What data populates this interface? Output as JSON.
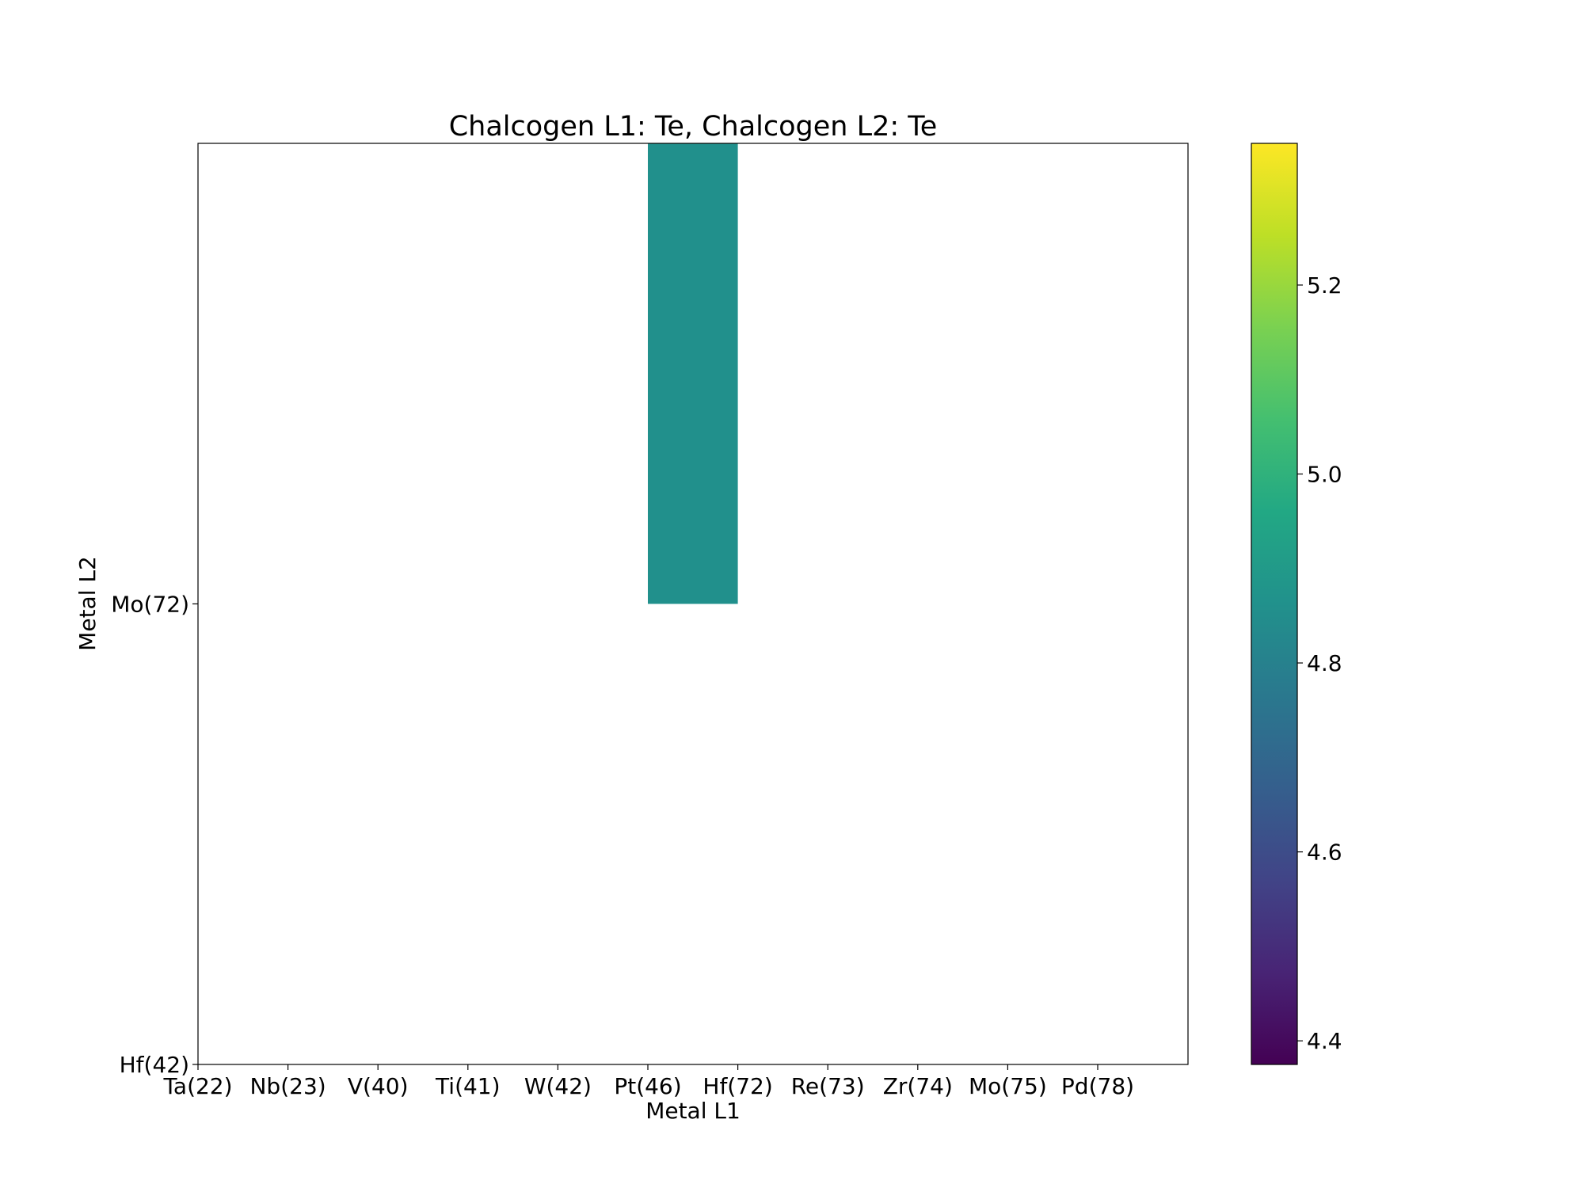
{
  "chart_data": {
    "type": "heatmap",
    "title": "Chalcogen L1: Te, Chalcogen L2: Te",
    "xlabel": "Metal L1",
    "ylabel": "Metal L2",
    "x_categories": [
      "Ta(22)",
      "Nb(23)",
      "V(40)",
      "Ti(41)",
      "W(42)",
      "Pt(46)",
      "Hf(72)",
      "Re(73)",
      "Zr(74)",
      "Mo(75)",
      "Pd(78)"
    ],
    "y_categories": [
      "Hf(42)",
      "Mo(72)"
    ],
    "cells": [
      {
        "x": "Pt(46)",
        "y": "Mo(72)",
        "value": 4.86
      }
    ],
    "colorbar": {
      "colormap": "viridis",
      "range": [
        4.375,
        5.35
      ],
      "ticks": [
        "4.4",
        "4.6",
        "4.8",
        "5.0",
        "5.2"
      ]
    },
    "grid": false
  }
}
